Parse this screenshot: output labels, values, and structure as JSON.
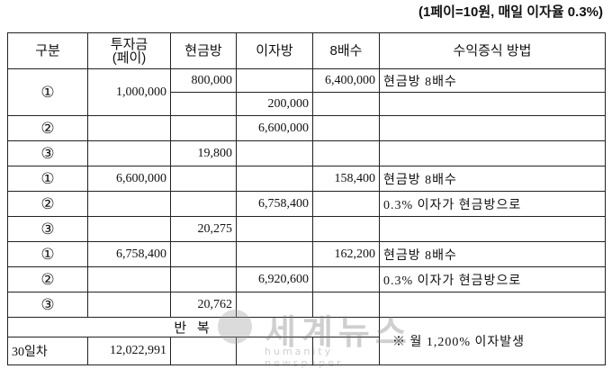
{
  "note": "(1페이=10원, 매일 이자율 0.3%)",
  "table": {
    "header": [
      "구분",
      "투자금\n(페이)",
      "현금방",
      "이자방",
      "8배수",
      "수익증식 방법"
    ],
    "rows": [
      {
        "label": "①",
        "invest": "1,000,000",
        "cash": "800,000",
        "interest": "200,000",
        "x8": "6,400,000",
        "method": "현금방 8배수"
      },
      {
        "label": "②",
        "interest": "6,600,000"
      },
      {
        "label": "③",
        "cash": "19,800"
      },
      {
        "label": "①",
        "invest": "6,600,000",
        "x8": "158,400",
        "method": "현금방 8배수"
      },
      {
        "label": "②",
        "interest": "6,758,400",
        "method": "0.3% 이자가 현금방으로"
      },
      {
        "label": "③",
        "cash": "20,275"
      },
      {
        "label": "①",
        "invest": "6,758,400",
        "x8": "162,200",
        "method": "현금방 8배수"
      },
      {
        "label": "②",
        "interest": "6,920,600",
        "method": "0.3% 이자가 현금방으로"
      },
      {
        "label": "③",
        "cash": "20,762"
      }
    ],
    "repeat": "반 복",
    "total": {
      "label": "30일차",
      "invest": "12,022,991"
    },
    "footnote": "※ 월 1,200% 이자발생"
  },
  "watermark": {
    "title": "세계뉴스",
    "subtitle": "humanity newspaper"
  }
}
